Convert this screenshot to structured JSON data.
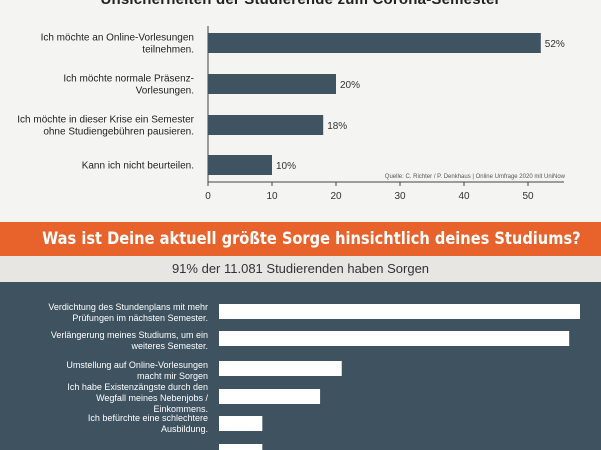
{
  "top_chart": {
    "title": "Unsicherheiten der Studierende zum Corona-Semester",
    "source": "Quelle: C. Richter / P. Denkhaus | Online Umfrage 2020 mit UniNow",
    "colors": {
      "bar": "#3f5361",
      "background": "#f4f4f2",
      "axis": "#444444"
    }
  },
  "bottom_chart": {
    "banner": "Was ist Deine aktuell größte Sorge hinsichtlich deines Studiums?",
    "subtitle": "91% der 11.081 Studierenden haben Sorgen",
    "colors": {
      "bar": "#ffffff",
      "background": "#3e5260",
      "banner": "#e8632b",
      "subbar": "#e7e6e3"
    }
  },
  "chart_data": [
    {
      "type": "bar",
      "orientation": "horizontal",
      "title": "Unsicherheiten der Studierende zum Corona-Semester",
      "categories": [
        [
          "Ich möchte an Online-Vorlesungen",
          "teilnehmen."
        ],
        [
          "Ich möchte normale Präsenz-",
          "Vorlesungen."
        ],
        [
          "Ich möchte in dieser Krise ein Semester",
          "ohne Studiengebühren pausieren."
        ],
        [
          "Kann ich nicht beurteilen."
        ]
      ],
      "values": [
        52,
        20,
        18,
        10
      ],
      "value_labels": [
        "52%",
        "20%",
        "18%",
        "10%"
      ],
      "xlim": [
        0,
        55
      ],
      "xticks": [
        0,
        10,
        20,
        30,
        40,
        50
      ],
      "xtick_labels": [
        "0",
        "10",
        "20",
        "30",
        "40",
        "50"
      ],
      "grid": false
    },
    {
      "type": "bar",
      "orientation": "horizontal",
      "title": "Was ist Deine aktuell größte Sorge hinsichtlich deines Studiums?",
      "categories": [
        [
          "Verdichtung des Stundenplans mit mehr",
          "Prüfungen im nächsten Semester."
        ],
        [
          "Verlängerung meines Studiums, um ein",
          "weiteres Semester."
        ],
        [
          "Umstellung auf Online-Vorlesungen",
          "macht mir Sorgen"
        ],
        [
          "Ich habe Existenzängste durch den",
          "Wegfall meines Nebenjobs /",
          "Einkommens."
        ],
        [
          "Ich befürchte eine schlechtere",
          "Ausbildung."
        ],
        [
          ""
        ]
      ],
      "values": [
        100,
        97,
        34,
        28,
        12,
        12
      ],
      "xlim": [
        0,
        100
      ],
      "grid": false
    }
  ]
}
